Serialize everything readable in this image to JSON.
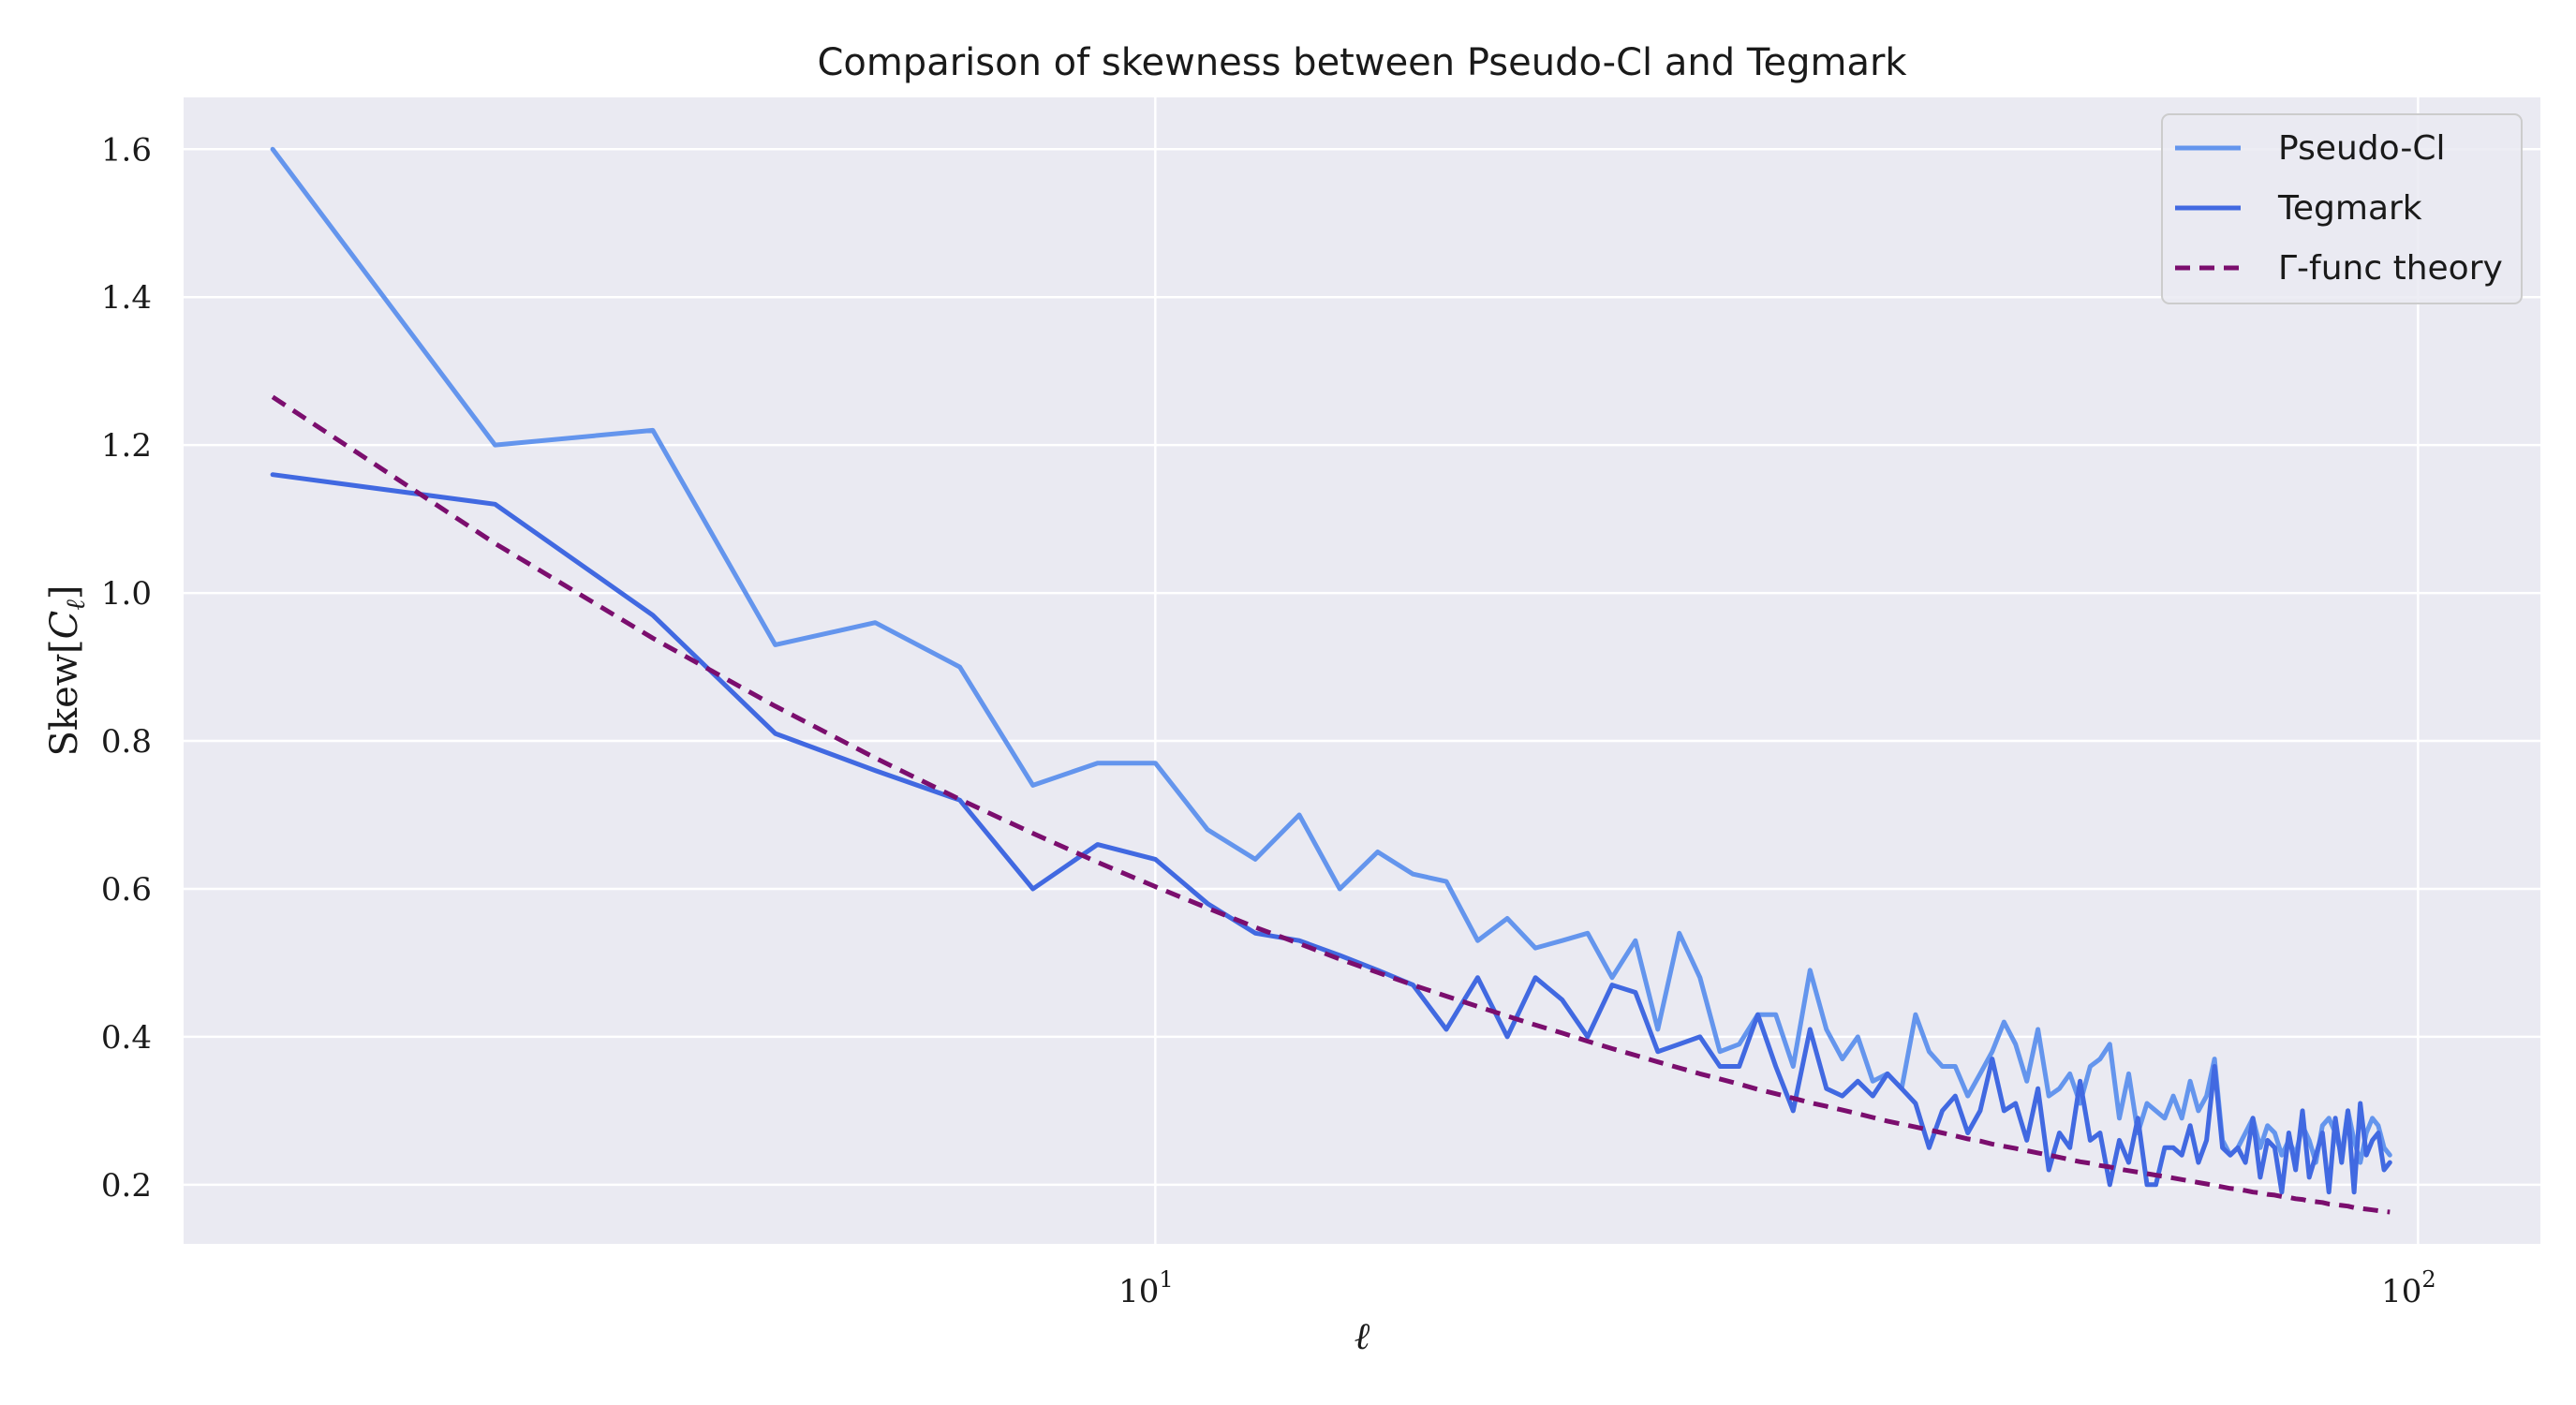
{
  "chart_data": {
    "type": "line",
    "title": "Comparison of skewness between Pseudo-Cl and Tegmark",
    "xlabel": "ℓ",
    "ylabel": "Skew[C_ℓ]",
    "xscale": "log",
    "xlim": [
      1.7,
      125
    ],
    "ylim": [
      0.12,
      1.67
    ],
    "yticks": [
      0.2,
      0.4,
      0.6,
      0.8,
      1.0,
      1.2,
      1.4,
      1.6
    ],
    "ytick_labels": [
      "0.2",
      "0.4",
      "0.6",
      "0.8",
      "1.0",
      "1.2",
      "1.4",
      "1.6"
    ],
    "xticks": [
      10,
      100
    ],
    "xtick_labels": [
      {
        "base": "10",
        "exp": "1"
      },
      {
        "base": "10",
        "exp": "2"
      }
    ],
    "grid": true,
    "legend_position": "top-right",
    "x": [
      2,
      3,
      4,
      5,
      6,
      7,
      8,
      9,
      10,
      11,
      12,
      13,
      14,
      15,
      16,
      17,
      18,
      19,
      20,
      21,
      22,
      23,
      24,
      25,
      26,
      27,
      28,
      29,
      30,
      31,
      32,
      33,
      34,
      35,
      36,
      37,
      38,
      39,
      40,
      41,
      42,
      43,
      44,
      45,
      46,
      47,
      48,
      49,
      50,
      51,
      52,
      53,
      54,
      55,
      56,
      57,
      58,
      59,
      60,
      61,
      62,
      63,
      64,
      65,
      66,
      67,
      68,
      69,
      70,
      71,
      72,
      73,
      74,
      75,
      76,
      77,
      78,
      79,
      80,
      81,
      82,
      83,
      84,
      85,
      86,
      87,
      88,
      89,
      90,
      91,
      92,
      93,
      94,
      95
    ],
    "series": [
      {
        "name": "Pseudo-Cl",
        "color": "#6495ed",
        "style": "solid",
        "values": [
          1.6,
          1.2,
          1.22,
          0.93,
          0.96,
          0.9,
          0.74,
          0.77,
          0.77,
          0.68,
          0.64,
          0.7,
          0.6,
          0.65,
          0.62,
          0.61,
          0.53,
          0.56,
          0.52,
          0.53,
          0.54,
          0.48,
          0.53,
          0.41,
          0.54,
          0.48,
          0.38,
          0.39,
          0.43,
          0.43,
          0.36,
          0.49,
          0.41,
          0.37,
          0.4,
          0.34,
          0.35,
          0.33,
          0.43,
          0.38,
          0.36,
          0.36,
          0.32,
          0.35,
          0.38,
          0.42,
          0.39,
          0.34,
          0.41,
          0.32,
          0.33,
          0.35,
          0.31,
          0.36,
          0.37,
          0.39,
          0.29,
          0.35,
          0.27,
          0.31,
          0.3,
          0.29,
          0.32,
          0.29,
          0.34,
          0.3,
          0.32,
          0.37,
          0.26,
          0.24,
          0.25,
          0.27,
          0.29,
          0.25,
          0.28,
          0.27,
          0.24,
          0.26,
          0.24,
          0.28,
          0.26,
          0.23,
          0.28,
          0.29,
          0.27,
          0.24,
          0.3,
          0.26,
          0.23,
          0.27,
          0.29,
          0.28,
          0.25,
          0.24
        ]
      },
      {
        "name": "Tegmark",
        "color": "#4169e1",
        "style": "solid",
        "values": [
          1.16,
          1.12,
          0.97,
          0.81,
          0.76,
          0.72,
          0.6,
          0.66,
          0.64,
          0.58,
          0.54,
          0.53,
          0.51,
          0.49,
          0.47,
          0.41,
          0.48,
          0.4,
          0.48,
          0.45,
          0.4,
          0.47,
          0.46,
          0.38,
          0.39,
          0.4,
          0.36,
          0.36,
          0.43,
          0.36,
          0.3,
          0.41,
          0.33,
          0.32,
          0.34,
          0.32,
          0.35,
          0.33,
          0.31,
          0.25,
          0.3,
          0.32,
          0.27,
          0.3,
          0.37,
          0.3,
          0.31,
          0.26,
          0.33,
          0.22,
          0.27,
          0.25,
          0.34,
          0.26,
          0.27,
          0.2,
          0.26,
          0.23,
          0.29,
          0.2,
          0.2,
          0.25,
          0.25,
          0.24,
          0.28,
          0.23,
          0.26,
          0.36,
          0.25,
          0.24,
          0.25,
          0.23,
          0.29,
          0.21,
          0.26,
          0.25,
          0.19,
          0.27,
          0.22,
          0.3,
          0.21,
          0.24,
          0.27,
          0.19,
          0.29,
          0.23,
          0.3,
          0.19,
          0.31,
          0.24,
          0.26,
          0.27,
          0.22,
          0.23
        ]
      },
      {
        "name": "Γ-func theory",
        "color": "#7b0e6e",
        "style": "dashed",
        "values": [
          1.265,
          1.067,
          0.939,
          0.847,
          0.777,
          0.721,
          0.675,
          0.636,
          0.603,
          0.574,
          0.548,
          0.526,
          0.505,
          0.487,
          0.47,
          0.455,
          0.441,
          0.428,
          0.416,
          0.405,
          0.394,
          0.384,
          0.375,
          0.366,
          0.358,
          0.35,
          0.343,
          0.336,
          0.329,
          0.323,
          0.317,
          0.311,
          0.306,
          0.301,
          0.296,
          0.291,
          0.286,
          0.282,
          0.278,
          0.274,
          0.27,
          0.266,
          0.262,
          0.259,
          0.255,
          0.252,
          0.249,
          0.246,
          0.243,
          0.24,
          0.237,
          0.234,
          0.231,
          0.229,
          0.226,
          0.224,
          0.221,
          0.219,
          0.217,
          0.215,
          0.213,
          0.211,
          0.209,
          0.207,
          0.205,
          0.203,
          0.201,
          0.199,
          0.197,
          0.195,
          0.194,
          0.192,
          0.19,
          0.189,
          0.187,
          0.186,
          0.184,
          0.183,
          0.181,
          0.18,
          0.178,
          0.177,
          0.176,
          0.174,
          0.173,
          0.172,
          0.171,
          0.169,
          0.168,
          0.167,
          0.166,
          0.165,
          0.164,
          0.163
        ]
      }
    ]
  }
}
